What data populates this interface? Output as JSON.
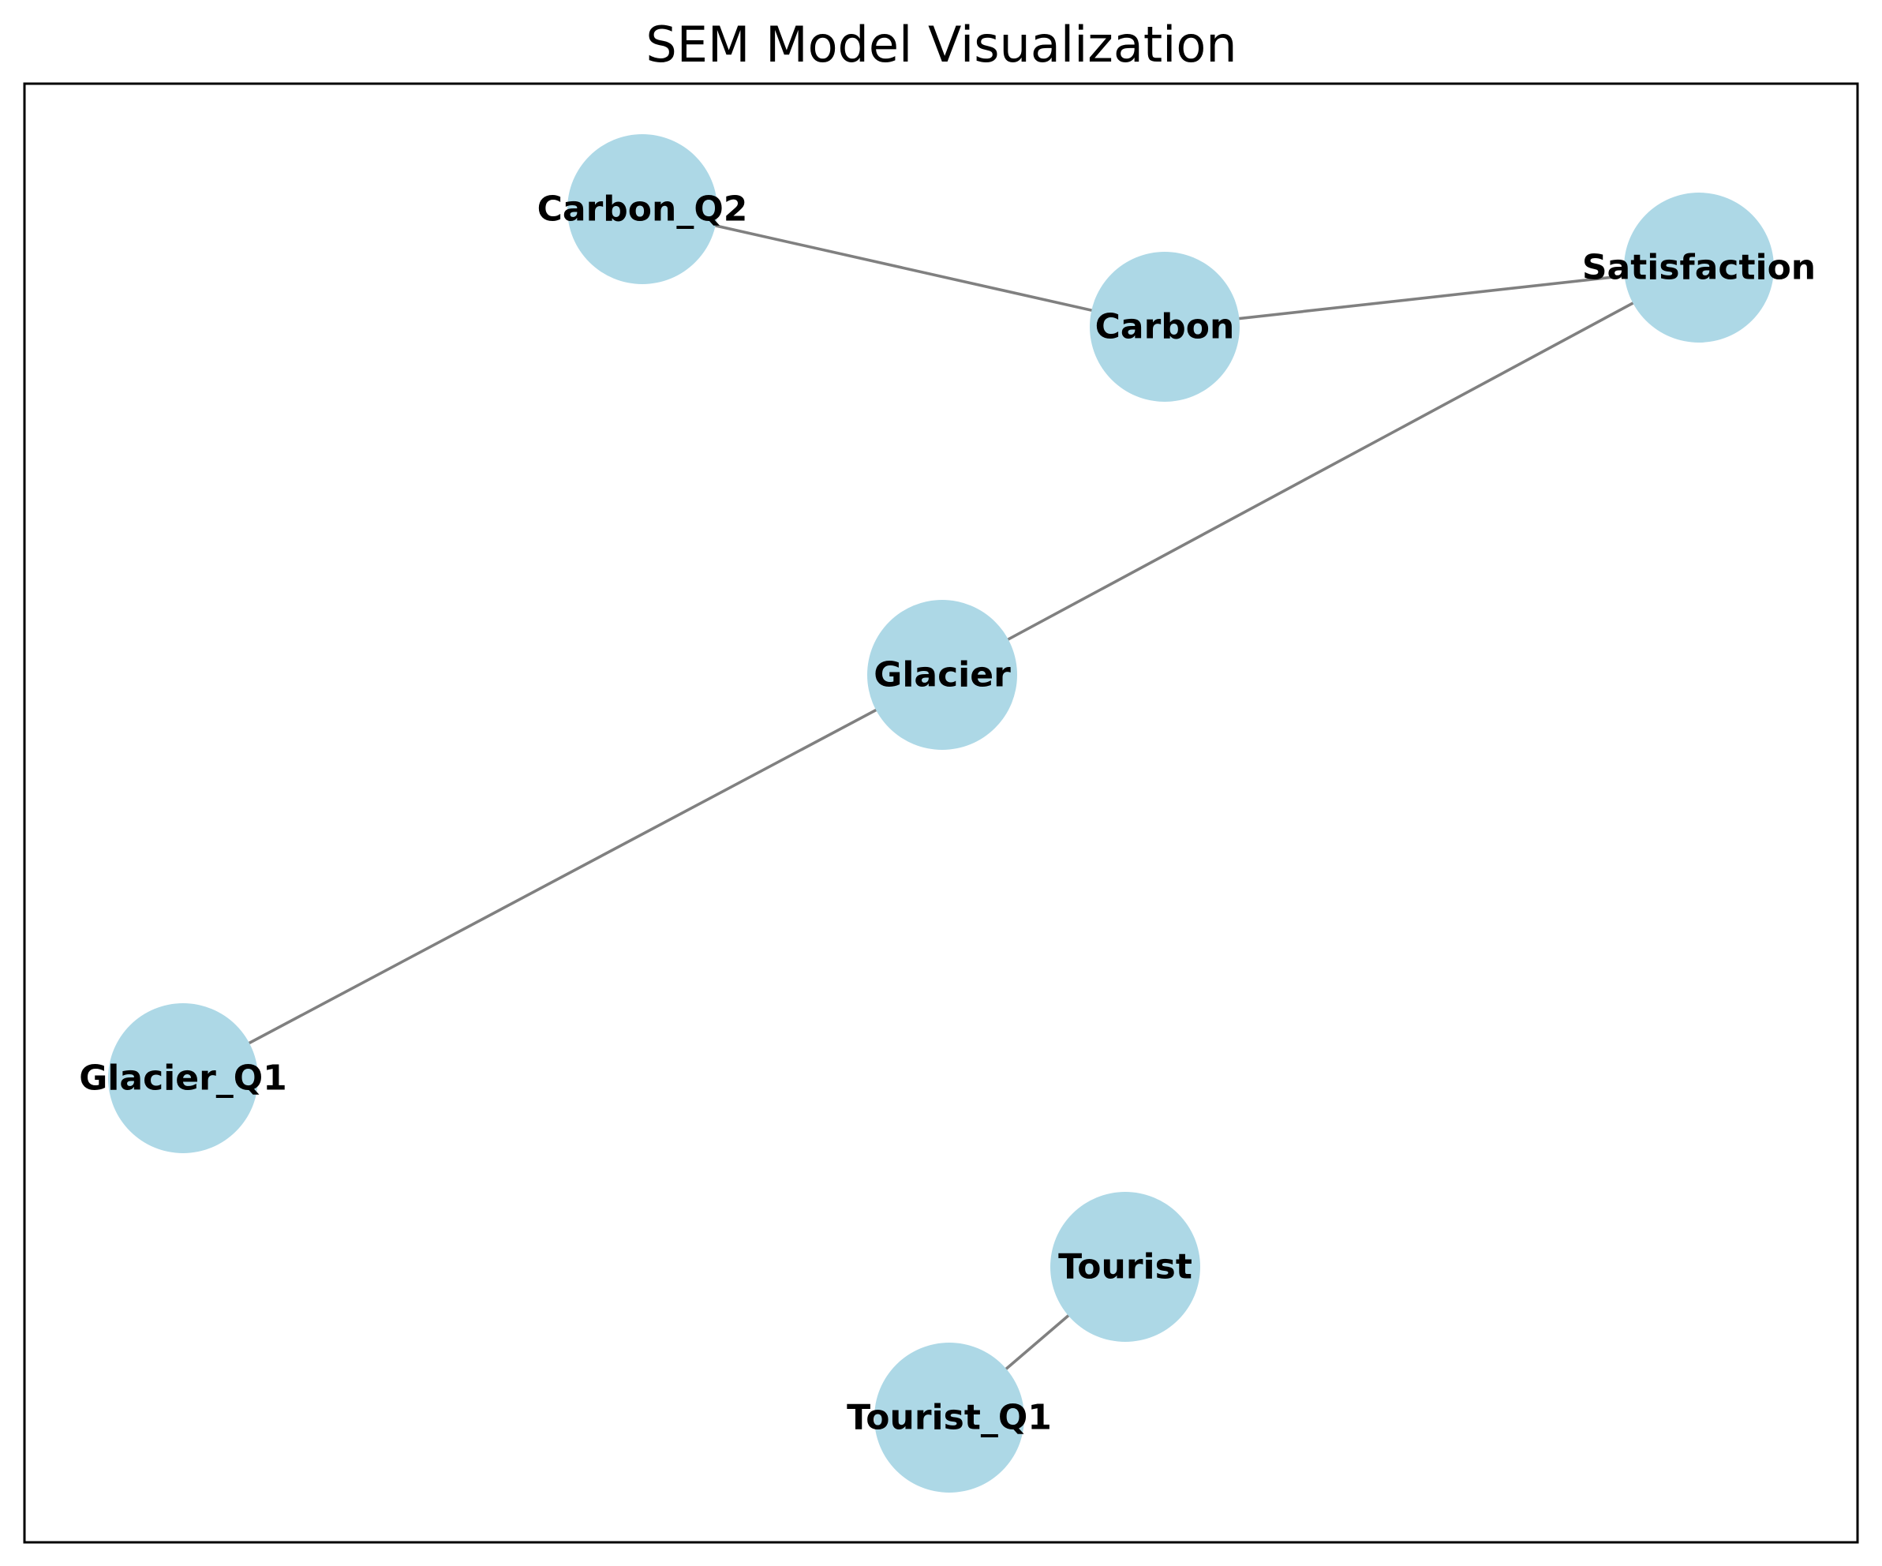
{
  "diagram": {
    "title": "SEM Model Visualization",
    "colors": {
      "node_fill": "#add8e6",
      "edge": "#808080",
      "label": "#000000",
      "frame": "#000000",
      "background": "#ffffff"
    },
    "nodes": [
      {
        "id": "Carbon_Q2",
        "label": "Carbon_Q2"
      },
      {
        "id": "Carbon",
        "label": "Carbon"
      },
      {
        "id": "Satisfaction",
        "label": "Satisfaction"
      },
      {
        "id": "Glacier",
        "label": "Glacier"
      },
      {
        "id": "Glacier_Q1",
        "label": "Glacier_Q1"
      },
      {
        "id": "Tourist",
        "label": "Tourist"
      },
      {
        "id": "Tourist_Q1",
        "label": "Tourist_Q1"
      }
    ],
    "edges": [
      {
        "source": "Carbon_Q2",
        "target": "Carbon"
      },
      {
        "source": "Carbon",
        "target": "Satisfaction"
      },
      {
        "source": "Satisfaction",
        "target": "Glacier"
      },
      {
        "source": "Glacier",
        "target": "Glacier_Q1"
      },
      {
        "source": "Tourist",
        "target": "Tourist_Q1"
      }
    ]
  }
}
